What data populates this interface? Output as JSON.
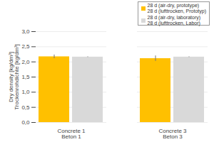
{
  "chart_data": {
    "type": "bar",
    "y_label": "Dry density [kg/dm³]\nTrockenrohdichte [kg/dm³]",
    "categories": [
      "Concrete 1\nBeton 1",
      "Concrete 3\nBeton 3"
    ],
    "series": [
      {
        "name": "28 d (air-dry, prototype)\n28 d (lufttrocken, Prototyp)",
        "color": "#ffc000",
        "values": [
          2.17,
          2.11
        ],
        "errors": [
          0.06,
          0.09
        ]
      },
      {
        "name": "28 d (air-dry, laboratory)\n28 d (lufttrocken, Labor)",
        "color": "#d9d9d9",
        "values": [
          2.16,
          2.16
        ],
        "errors": [
          0.01,
          0.01
        ]
      }
    ],
    "ylim": [
      0,
      3
    ],
    "yticks": [
      {
        "value": 0,
        "label": "0,0"
      },
      {
        "value": 0.5,
        "label": "0,5"
      },
      {
        "value": 1,
        "label": "1,0"
      },
      {
        "value": 1.5,
        "label": "1,5"
      },
      {
        "value": 2,
        "label": "2,0"
      },
      {
        "value": 2.5,
        "label": "2,5"
      },
      {
        "value": 3,
        "label": "3,0"
      }
    ],
    "grid": true,
    "legend": "top-right"
  }
}
